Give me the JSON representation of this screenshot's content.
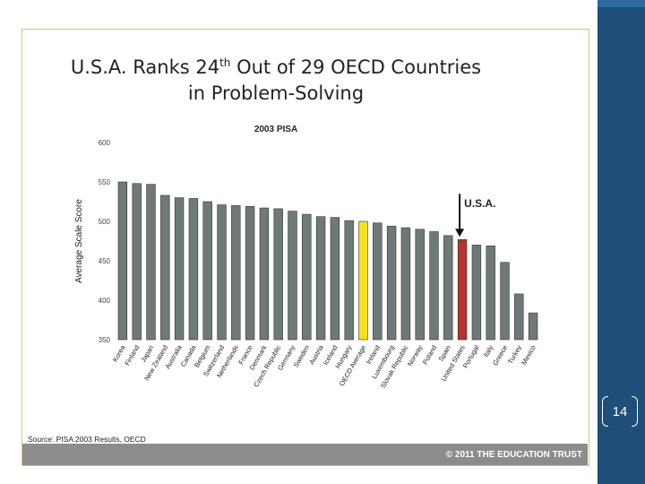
{
  "slide": {
    "title_line1": "U.S.A. Ranks 24",
    "title_sup": "th",
    "title_line1_rest": " Out of 29 OECD Countries",
    "title_line2": "in Problem-Solving",
    "source": "Source: PISA 2003 Results, OECD",
    "footer": "© 2011 THE EDUCATION TRUST",
    "page_number": "14"
  },
  "chart_data": {
    "type": "bar",
    "title": "2003 PISA",
    "ylabel": "Average Scale Score",
    "xlabel": "",
    "ylim": [
      350,
      600
    ],
    "yticks": [
      350,
      400,
      450,
      500,
      550,
      600
    ],
    "categories": [
      "Korea",
      "Finland",
      "Japan",
      "New Zealand",
      "Australia",
      "Canada",
      "Belgium",
      "Switzerland",
      "Netherlands",
      "France",
      "Denmark",
      "Czech Republic",
      "Germany",
      "Sweden",
      "Austria",
      "Iceland",
      "Hungary",
      "OECD Average",
      "Ireland",
      "Luxembourg",
      "Slovak Republic",
      "Norway",
      "Poland",
      "Spain",
      "United States",
      "Portugal",
      "Italy",
      "Greece",
      "Turkey",
      "Mexico"
    ],
    "values": [
      550,
      548,
      547,
      533,
      530,
      529,
      525,
      521,
      520,
      519,
      517,
      516,
      513,
      509,
      506,
      505,
      501,
      500,
      498,
      494,
      492,
      490,
      487,
      482,
      477,
      470,
      469,
      448,
      408,
      384
    ],
    "colors": {
      "default": "#6e7a78",
      "OECD Average": "#f6e11c",
      "United States": "#b5322d"
    },
    "annotation": {
      "label": "U.S.A.",
      "target": "United States"
    }
  }
}
